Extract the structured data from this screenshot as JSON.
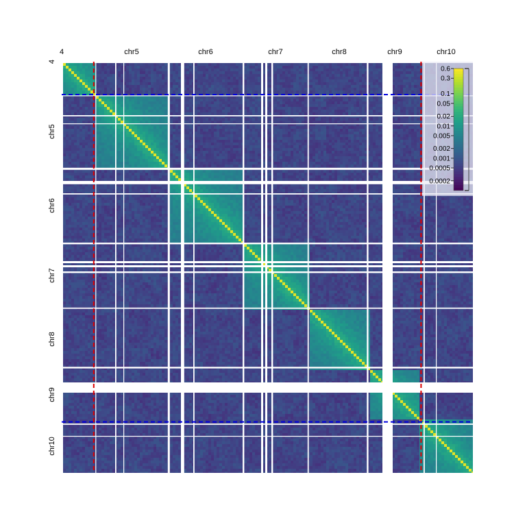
{
  "chart_data": {
    "type": "heatmap",
    "title": "",
    "xlabel": "",
    "ylabel": "",
    "x_tick_labels": [
      "4",
      "chr5",
      "chr6",
      "chr7",
      "chr8",
      "chr9",
      "chr10"
    ],
    "y_tick_labels": [
      "4",
      "chr5",
      "chr6",
      "chr7",
      "chr8",
      "chr9",
      "chr10"
    ],
    "chromosomes": [
      {
        "name": "4",
        "start": 0,
        "end": 8
      },
      {
        "name": "chr5",
        "start": 8,
        "end": 26
      },
      {
        "name": "chr6",
        "start": 26,
        "end": 44
      },
      {
        "name": "chr7",
        "start": 44,
        "end": 60
      },
      {
        "name": "chr8",
        "start": 60,
        "end": 75
      },
      {
        "name": "chr9",
        "start": 75,
        "end": 87
      },
      {
        "name": "chr10",
        "start": 87,
        "end": 100
      }
    ],
    "masked_bins": [
      {
        "start": 8.2,
        "end": 8.4
      },
      {
        "start": 13.0,
        "end": 13.3
      },
      {
        "start": 15.0,
        "end": 15.2
      },
      {
        "start": 25.8,
        "end": 26.3
      },
      {
        "start": 29.0,
        "end": 29.8
      },
      {
        "start": 32.0,
        "end": 32.3
      },
      {
        "start": 44.0,
        "end": 44.4
      },
      {
        "start": 48.5,
        "end": 49.0
      },
      {
        "start": 49.5,
        "end": 50.0
      },
      {
        "start": 51.0,
        "end": 51.4
      },
      {
        "start": 59.8,
        "end": 60.1
      },
      {
        "start": 74.2,
        "end": 74.6
      },
      {
        "start": 78.0,
        "end": 80.5
      },
      {
        "start": 88.0,
        "end": 88.3
      },
      {
        "start": 91.0,
        "end": 91.2
      }
    ],
    "color_scale": {
      "type": "log",
      "min": 0.0001,
      "max": 0.6,
      "tick_labels": [
        "0.6",
        "0.3",
        "0.1",
        "0.05",
        "0.02",
        "0.01",
        "0.005",
        "0.002",
        "0.001",
        "0.0005",
        "0.0002"
      ],
      "colormap": "viridis",
      "legend_position": "top-right"
    },
    "vertical_markers": [
      {
        "position": 7.8,
        "color": "#dd0000",
        "style": "dashed"
      },
      {
        "position": 87.4,
        "color": "#dd0000",
        "style": "dashed"
      }
    ],
    "horizontal_markers": [
      {
        "position": 8.0,
        "color": "#0000dd",
        "style": "dashed"
      },
      {
        "position": 87.6,
        "color": "#0000dd",
        "style": "dashed"
      }
    ]
  }
}
